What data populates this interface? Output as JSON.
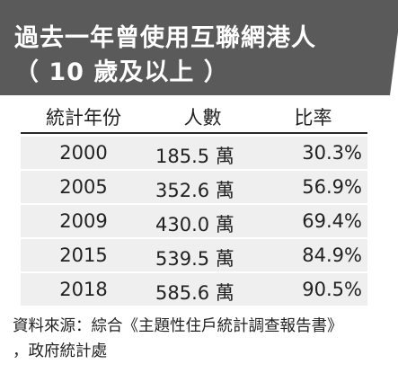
{
  "title": {
    "line1": "過去一年曾使用互聯網港人",
    "line2": "（ 10 歲及以上 ）"
  },
  "colors": {
    "banner": "#5a5a5a",
    "row_background": "#efefef",
    "text": "#222222"
  },
  "table": {
    "headers": [
      "統計年份",
      "人數",
      "比率"
    ],
    "rows": [
      {
        "year": "2000",
        "people": "185.5 萬",
        "ratio": "30.3%"
      },
      {
        "year": "2005",
        "people": "352.6 萬",
        "ratio": "56.9%"
      },
      {
        "year": "2009",
        "people": "430.0 萬",
        "ratio": "69.4%"
      },
      {
        "year": "2015",
        "people": "539.5 萬",
        "ratio": "84.9%"
      },
      {
        "year": "2018",
        "people": "585.6 萬",
        "ratio": "90.5%"
      }
    ]
  },
  "source": {
    "line1": "資料來源：綜合《主題性住戶統計調查報告書》",
    "line2": "，政府統計處"
  }
}
